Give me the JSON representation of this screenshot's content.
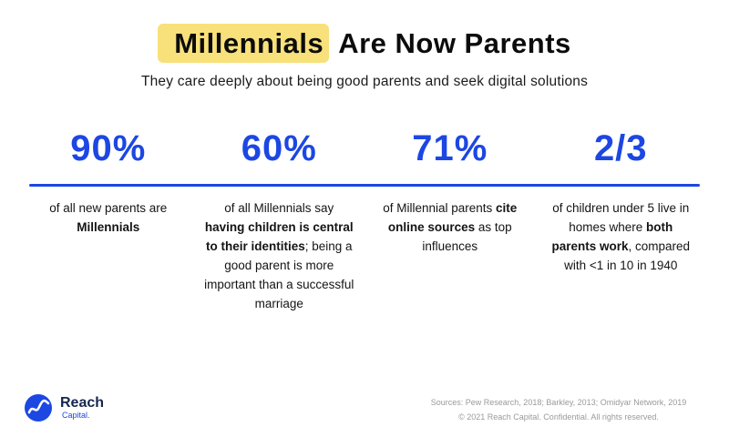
{
  "colors": {
    "accent": "#1c47e3",
    "highlight": "#f8e17a"
  },
  "title": {
    "highlighted": "Millennials",
    "rest": "Are Now Parents"
  },
  "subtitle": "They care deeply about being good parents and seek digital solutions",
  "stats": [
    {
      "value": "90%",
      "description": [
        {
          "text": "of all new parents are ",
          "bold": false
        },
        {
          "text": "Millennials",
          "bold": true
        }
      ]
    },
    {
      "value": "60%",
      "description": [
        {
          "text": "of all Millennials say ",
          "bold": false
        },
        {
          "text": "having children is central to their identities",
          "bold": true
        },
        {
          "text": "; being a good parent is more important than a successful marriage",
          "bold": false
        }
      ]
    },
    {
      "value": "71%",
      "description": [
        {
          "text": "of Millennial parents ",
          "bold": false
        },
        {
          "text": "cite online sources",
          "bold": true
        },
        {
          "text": " as top influences",
          "bold": false
        }
      ]
    },
    {
      "value": "2/3",
      "description": [
        {
          "text": "of children under 5 live in homes where ",
          "bold": false
        },
        {
          "text": "both parents work",
          "bold": true
        },
        {
          "text": ", compared with <1 in 10 in 1940",
          "bold": false
        }
      ]
    }
  ],
  "logo": {
    "name": "Reach",
    "sub": "Capital."
  },
  "footer": {
    "sources": "Sources: Pew Research, 2018; Barkley, 2013; Omidyar Network, 2019",
    "copyright": "© 2021 Reach Capital. Confidential. All rights reserved."
  }
}
